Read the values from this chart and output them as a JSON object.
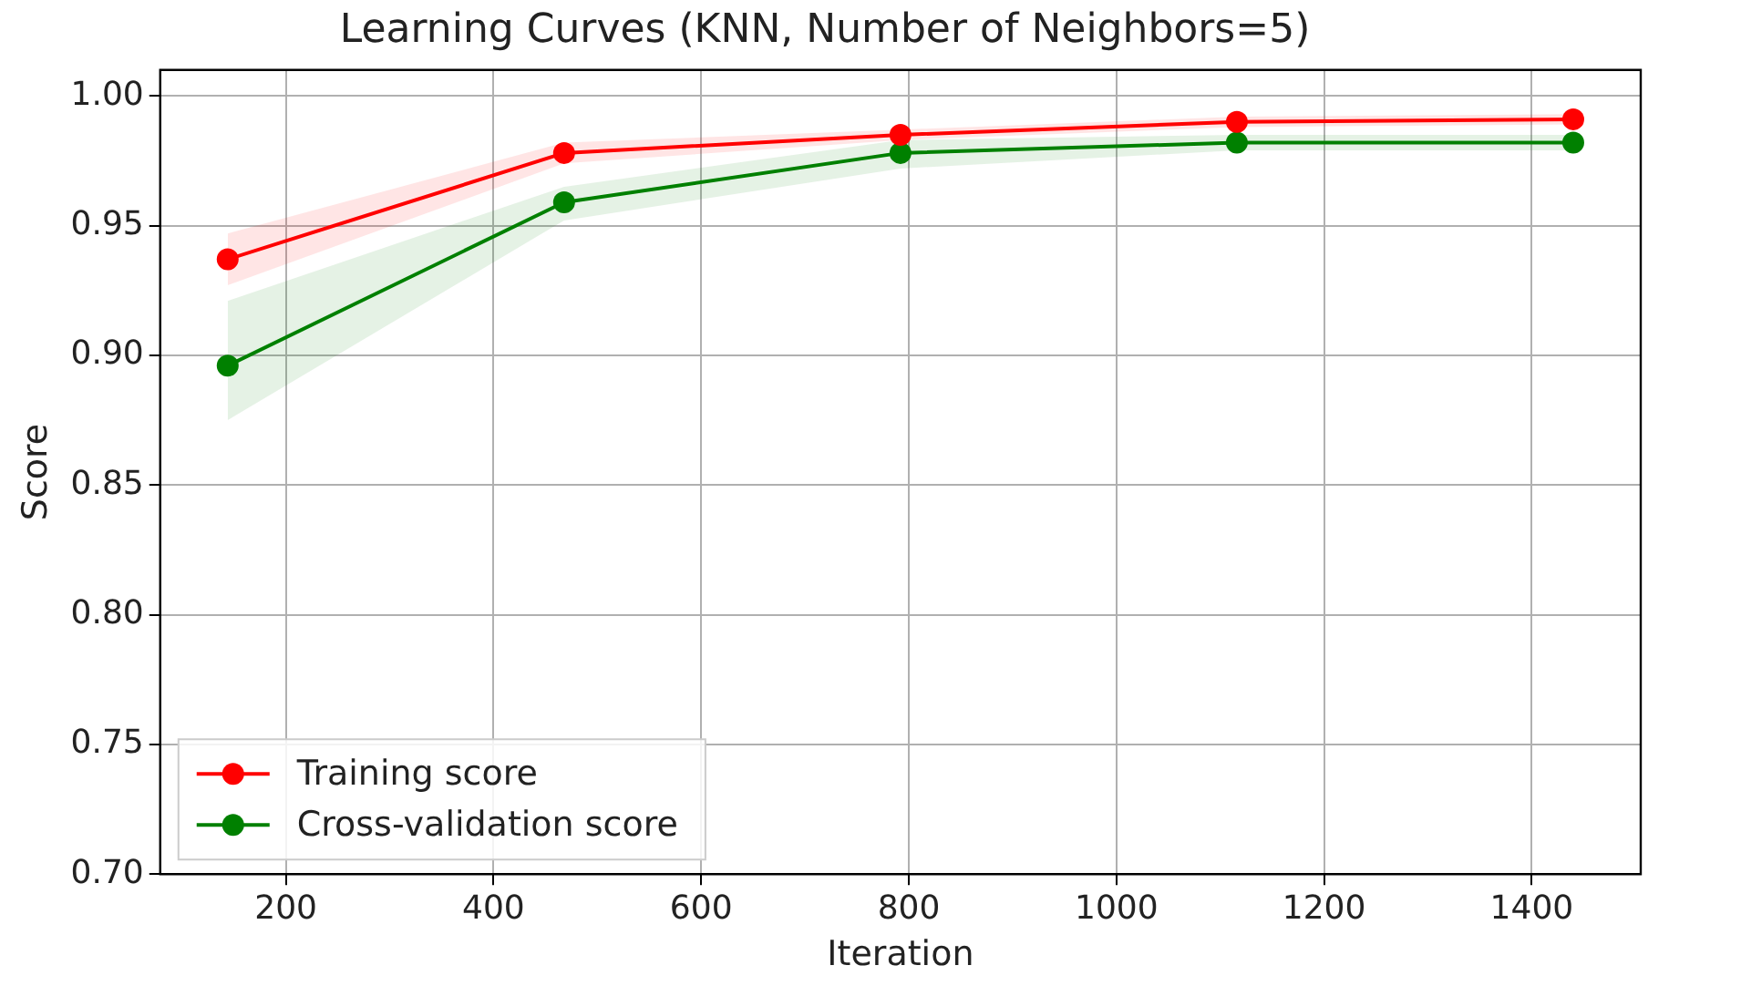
{
  "chart_data": {
    "type": "line",
    "title": "Learning Curves (KNN, Number of Neighbors=5)",
    "xlabel": "Iteration",
    "ylabel": "Score",
    "x": [
      144,
      468,
      792,
      1116,
      1440
    ],
    "series": [
      {
        "name": "Training score",
        "color": "#ff0000",
        "values": [
          0.937,
          0.978,
          0.985,
          0.99,
          0.991
        ],
        "lower": [
          0.927,
          0.974,
          0.983,
          0.988,
          0.989
        ],
        "upper": [
          0.947,
          0.982,
          0.987,
          0.992,
          0.993
        ]
      },
      {
        "name": "Cross-validation score",
        "color": "#008000",
        "values": [
          0.896,
          0.959,
          0.978,
          0.982,
          0.982
        ],
        "lower": [
          0.875,
          0.952,
          0.972,
          0.979,
          0.979
        ],
        "upper": [
          0.921,
          0.965,
          0.983,
          0.985,
          0.985
        ]
      }
    ],
    "xlim": [
      79,
      1505
    ],
    "xticks": [
      200,
      400,
      600,
      800,
      1000,
      1200,
      1400
    ],
    "ylim": [
      0.7,
      1.01
    ],
    "yticks": [
      {
        "value": 0.7,
        "label": "0.70"
      },
      {
        "value": 0.75,
        "label": "0.75"
      },
      {
        "value": 0.8,
        "label": "0.80"
      },
      {
        "value": 0.85,
        "label": "0.85"
      },
      {
        "value": 0.9,
        "label": "0.90"
      },
      {
        "value": 0.95,
        "label": "0.95"
      },
      {
        "value": 1.0,
        "label": "1.00"
      }
    ],
    "grid": true,
    "legend": "bottom left",
    "marker": "circle",
    "line_style": "solid"
  }
}
